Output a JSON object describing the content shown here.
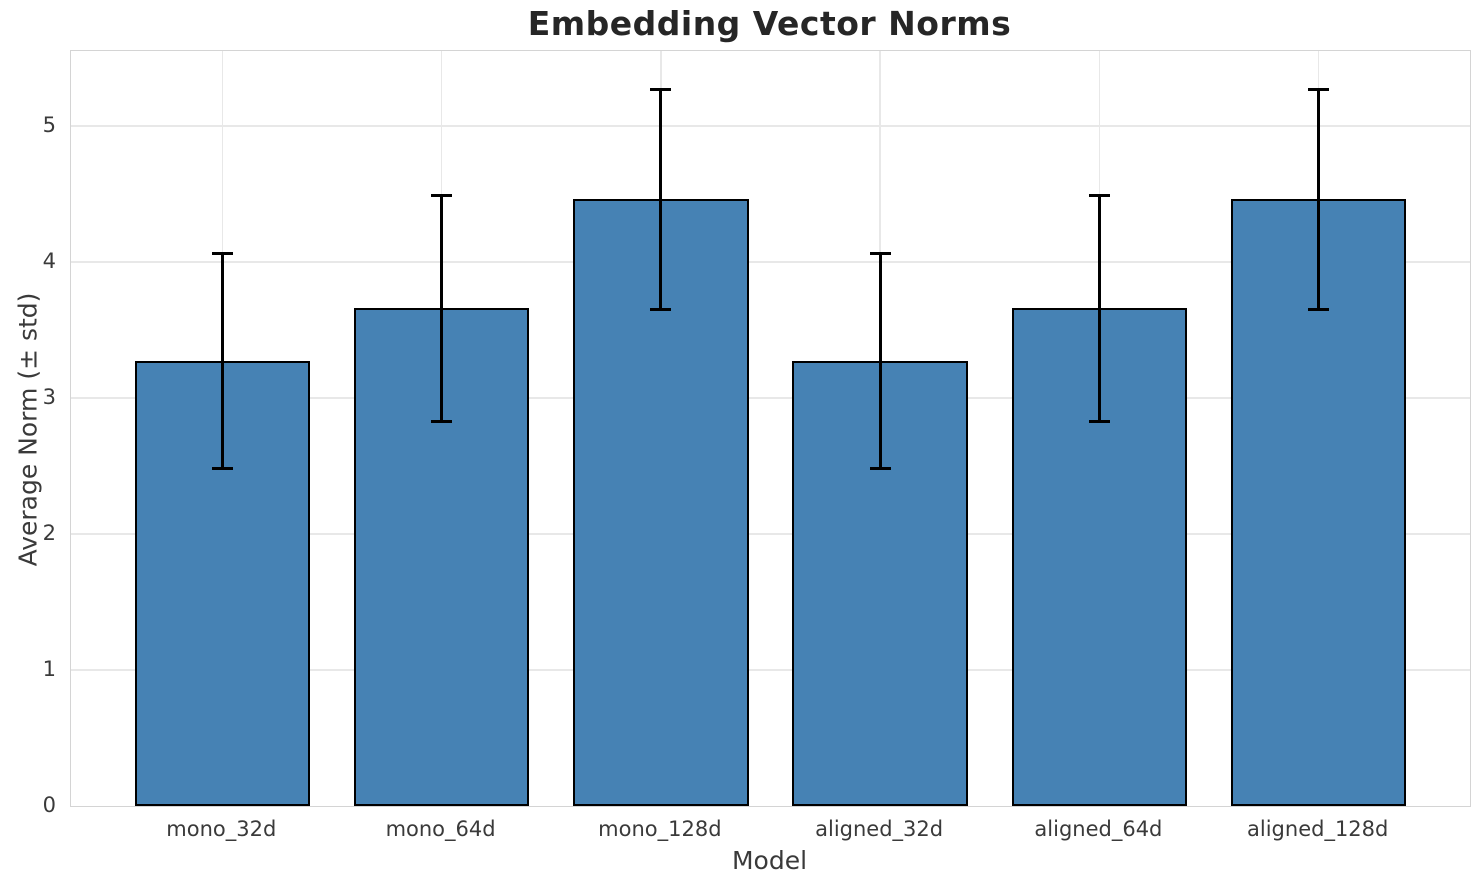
{
  "chart_data": {
    "type": "bar",
    "title": "Embedding Vector Norms",
    "xlabel": "Model",
    "ylabel": "Average Norm (± std)",
    "categories": [
      "mono_32d",
      "mono_64d",
      "mono_128d",
      "aligned_32d",
      "aligned_64d",
      "aligned_128d"
    ],
    "values": [
      3.27,
      3.66,
      4.46,
      3.27,
      3.66,
      4.46
    ],
    "errors": [
      0.79,
      0.83,
      0.81,
      0.79,
      0.83,
      0.81
    ],
    "yticks": [
      "0",
      "1",
      "2",
      "3",
      "4",
      "5"
    ],
    "ylim": [
      0,
      5.55
    ],
    "grid": true,
    "legend": "none",
    "bar_color": "#4682b4",
    "bar_edge_color": "#000000",
    "error_color": "#000000",
    "grid_color": "#e8e8e8",
    "spine_color": "#d4d4d4",
    "title_color": "#262626",
    "tick_color": "#3a3a3a",
    "background_color": "#ffffff"
  }
}
